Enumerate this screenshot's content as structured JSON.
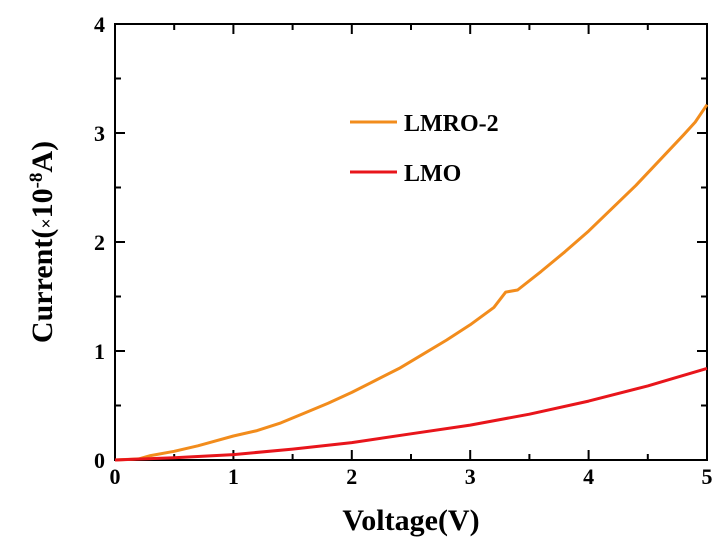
{
  "chart_data": {
    "type": "line",
    "title": "",
    "xlabel": "Voltage(V)",
    "ylabel": {
      "prefix": "Current(",
      "times": "×",
      "base": "10",
      "exponent": "-8",
      "suffix": "A)"
    },
    "xlim": [
      0,
      5
    ],
    "ylim": [
      0,
      4
    ],
    "xticks": [
      "0",
      "1",
      "2",
      "3",
      "4",
      "5"
    ],
    "yticks": [
      "0",
      "1",
      "2",
      "3",
      "4"
    ],
    "grid": false,
    "legend_position": "upper-center",
    "series": [
      {
        "name": "LMRO-2",
        "color": "#f28c1c",
        "x": [
          0,
          0.2,
          0.3,
          0.5,
          0.7,
          0.8,
          1.0,
          1.2,
          1.4,
          1.6,
          1.8,
          2.0,
          2.2,
          2.4,
          2.6,
          2.8,
          3.0,
          3.2,
          3.3,
          3.4,
          3.6,
          3.8,
          4.0,
          4.2,
          4.4,
          4.6,
          4.8,
          4.9,
          5.0
        ],
        "y": [
          0.0,
          0.01,
          0.04,
          0.08,
          0.13,
          0.16,
          0.22,
          0.27,
          0.34,
          0.43,
          0.52,
          0.62,
          0.73,
          0.84,
          0.97,
          1.1,
          1.24,
          1.4,
          1.54,
          1.56,
          1.73,
          1.91,
          2.1,
          2.31,
          2.52,
          2.75,
          2.98,
          3.1,
          3.26
        ]
      },
      {
        "name": "LMO",
        "color": "#e8151b",
        "x": [
          0,
          0.5,
          1.0,
          1.5,
          2.0,
          2.5,
          3.0,
          3.5,
          4.0,
          4.5,
          5.0
        ],
        "y": [
          0.0,
          0.02,
          0.05,
          0.1,
          0.16,
          0.24,
          0.32,
          0.42,
          0.54,
          0.68,
          0.84
        ]
      }
    ]
  }
}
